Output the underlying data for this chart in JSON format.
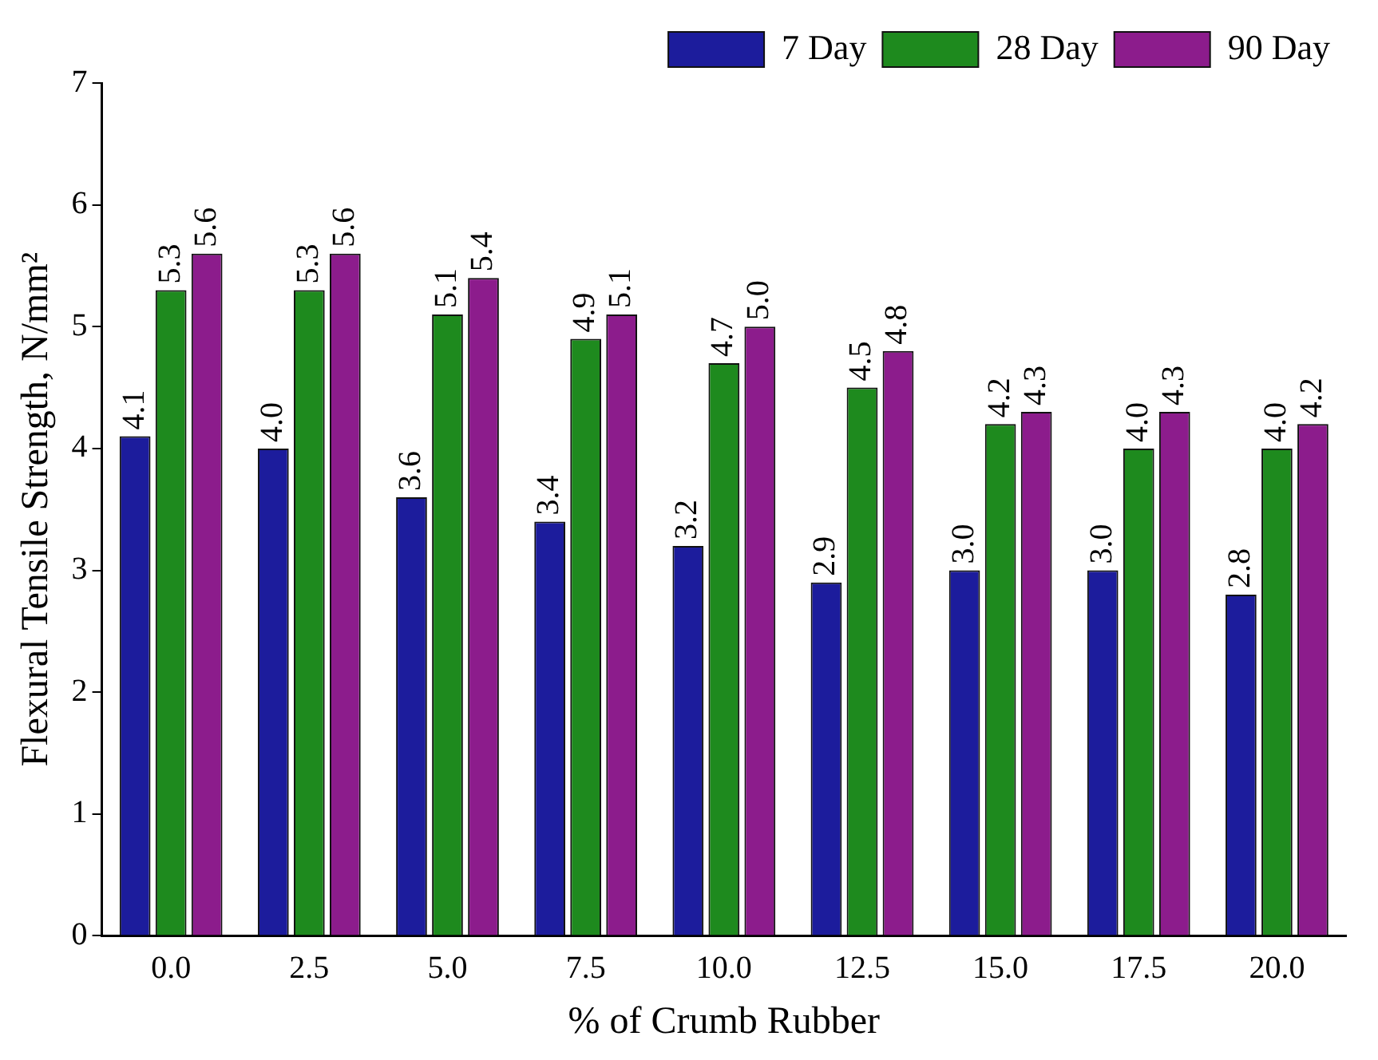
{
  "chart_data": {
    "type": "bar",
    "xlabel": "% of Crumb Rubber",
    "ylabel": "Flexural Tensile Strength, N/mm²",
    "categories": [
      "0.0",
      "2.5",
      "5.0",
      "7.5",
      "10.0",
      "12.5",
      "15.0",
      "17.5",
      "20.0"
    ],
    "series": [
      {
        "name": "7 Day",
        "color": "#1c1c9c",
        "values": [
          4.1,
          4.0,
          3.6,
          3.4,
          3.2,
          2.9,
          3.0,
          3.0,
          2.8
        ],
        "value_labels": [
          "4.1",
          "4.0",
          "3.6",
          "3.4",
          "3.2",
          "2.9",
          "3.0",
          "3.0",
          "2.8"
        ]
      },
      {
        "name": "28 Day",
        "color": "#1e8a1e",
        "values": [
          5.3,
          5.3,
          5.1,
          4.9,
          4.7,
          4.5,
          4.2,
          4.0,
          4.0
        ],
        "value_labels": [
          "5.3",
          "5.3",
          "5.1",
          "4.9",
          "4.7",
          "4.5",
          "4.2",
          "4.0",
          "4.0"
        ]
      },
      {
        "name": "90 Day",
        "color": "#8c1c8c",
        "values": [
          5.6,
          5.6,
          5.4,
          5.1,
          5.0,
          4.8,
          4.3,
          4.3,
          4.2
        ],
        "value_labels": [
          "5.6",
          "5.6",
          "5.4",
          "5.1",
          "5.0",
          "4.8",
          "4.3",
          "4.3",
          "4.2"
        ]
      }
    ],
    "ylim": [
      0,
      7
    ],
    "yticks": [
      0,
      1,
      2,
      3,
      4,
      5,
      6,
      7
    ],
    "legend": "top right"
  }
}
